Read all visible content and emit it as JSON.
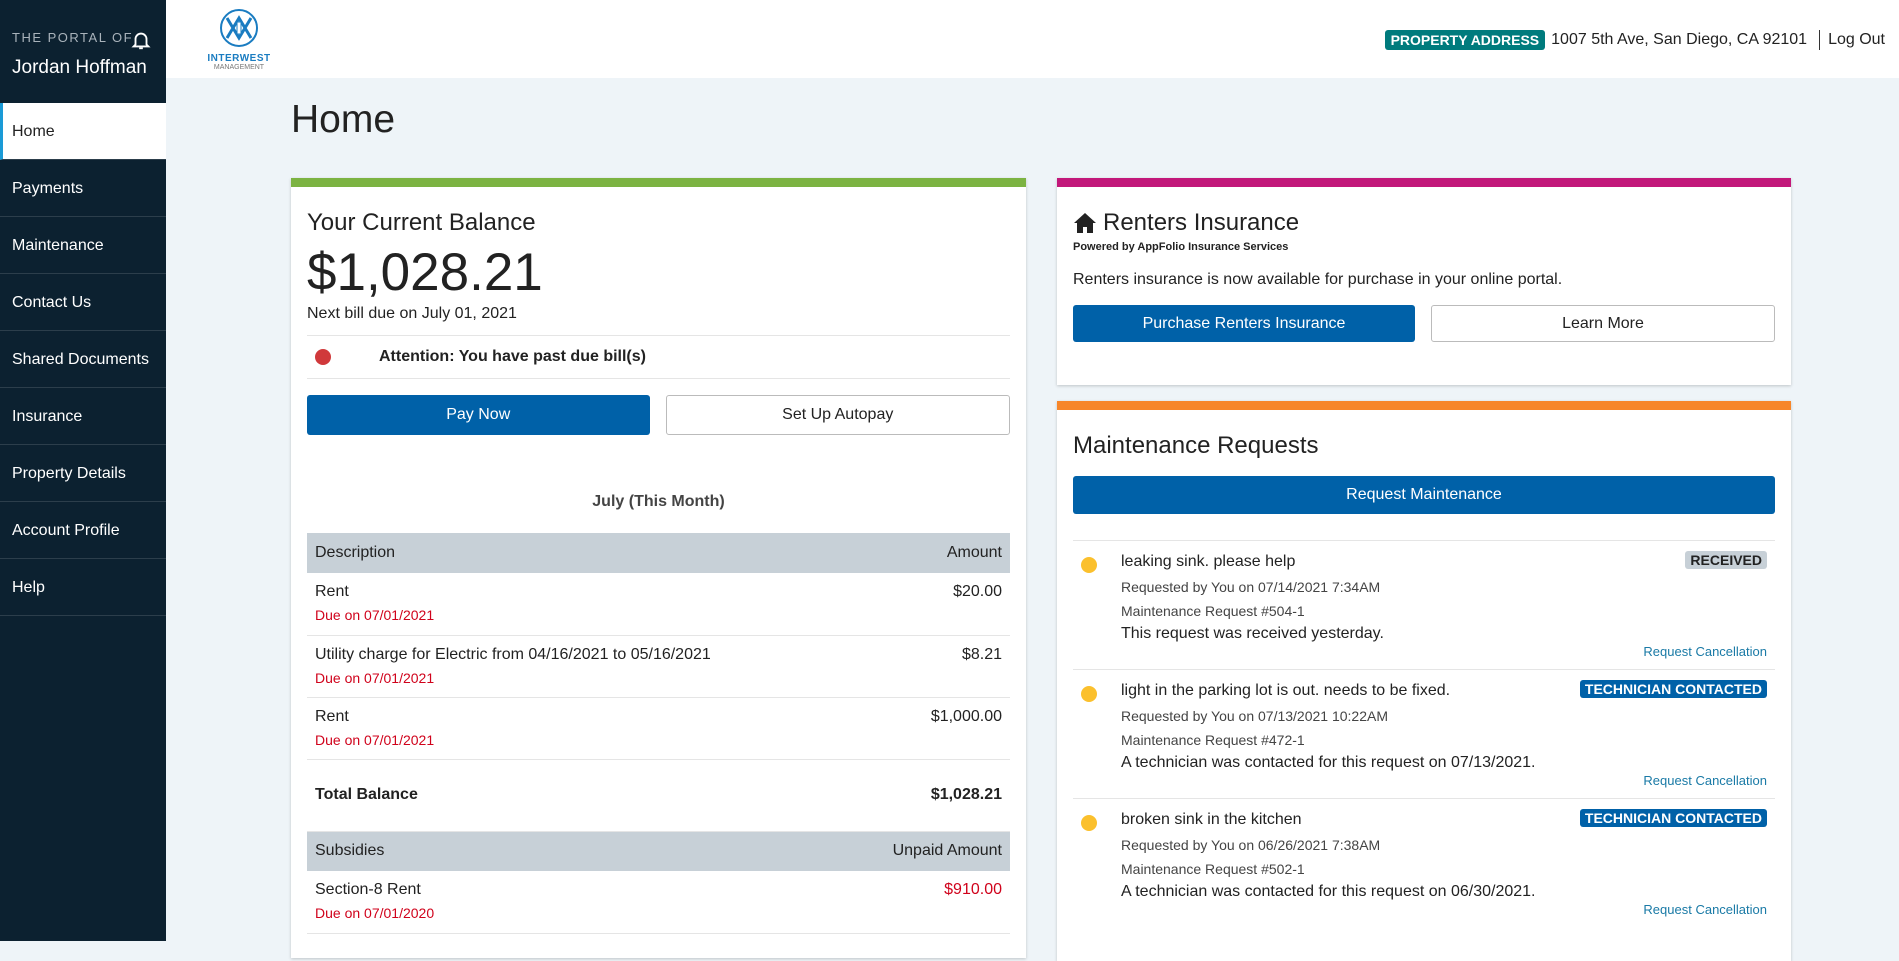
{
  "sidebar": {
    "portal_of": "THE PORTAL OF",
    "user_name": "Jordan Hoffman",
    "items": [
      {
        "label": "Home"
      },
      {
        "label": "Payments"
      },
      {
        "label": "Maintenance"
      },
      {
        "label": "Contact Us"
      },
      {
        "label": "Shared Documents"
      },
      {
        "label": "Insurance"
      },
      {
        "label": "Property Details"
      },
      {
        "label": "Account Profile"
      },
      {
        "label": "Help"
      }
    ]
  },
  "header": {
    "logo_line1": "INTERWEST",
    "logo_line2": "MANAGEMENT",
    "property_badge": "PROPERTY ADDRESS",
    "address": "1007 5th Ave, San Diego, CA 92101",
    "logout": "Log Out"
  },
  "page_title": "Home",
  "balance": {
    "title": "Your Current Balance",
    "amount": "$1,028.21",
    "next_bill": "Next bill due on July 01, 2021",
    "attention": "Attention: You have past due bill(s)",
    "pay_now": "Pay Now",
    "autopay": "Set Up Autopay",
    "month": "July (This Month)",
    "columns": {
      "description": "Description",
      "amount": "Amount"
    },
    "rows": [
      {
        "description": "Rent",
        "due": "Due on 07/01/2021",
        "amount": "$20.00"
      },
      {
        "description": "Utility charge for Electric from 04/16/2021 to 05/16/2021",
        "due": "Due on 07/01/2021",
        "amount": "$8.21"
      },
      {
        "description": "Rent",
        "due": "Due on 07/01/2021",
        "amount": "$1,000.00"
      }
    ],
    "total_label": "Total Balance",
    "total_amount": "$1,028.21",
    "subsidies": {
      "col1": "Subsidies",
      "col2": "Unpaid Amount",
      "rows": [
        {
          "description": "Section-8 Rent",
          "due": "Due on 07/01/2020",
          "amount": "$910.00"
        }
      ]
    }
  },
  "insurance": {
    "title": "Renters Insurance",
    "powered": "Powered by AppFolio Insurance Services",
    "text": "Renters insurance is now available for purchase in your online portal.",
    "purchase": "Purchase Renters Insurance",
    "learn_more": "Learn More"
  },
  "maintenance": {
    "title": "Maintenance Requests",
    "request_button": "Request Maintenance",
    "requests": [
      {
        "title": "leaking sink. please help",
        "requested": "Requested by You on 07/14/2021 7:34AM",
        "number": "Maintenance Request #504-1",
        "description": "This request was received yesterday.",
        "status": "RECEIVED",
        "cancel": "Request Cancellation"
      },
      {
        "title": "light in the parking lot is out. needs to be fixed.",
        "requested": "Requested by You on 07/13/2021 10:22AM",
        "number": "Maintenance Request #472-1",
        "description": "A technician was contacted for this request on 07/13/2021.",
        "status": "TECHNICIAN CONTACTED",
        "cancel": "Request Cancellation"
      },
      {
        "title": "broken sink in the kitchen",
        "requested": "Requested by You on 06/26/2021 7:38AM",
        "number": "Maintenance Request #502-1",
        "description": "A technician was contacted for this request on 06/30/2021.",
        "status": "TECHNICIAN CONTACTED",
        "cancel": "Request Cancellation"
      }
    ]
  },
  "colors": {
    "sidebar": "#0c2130",
    "primary": "#0061a8",
    "balance_accent": "#7cb342",
    "insurance_accent": "#c2187a",
    "maintenance_accent": "#f7862a",
    "badge": "#007b7d",
    "alert": "#d0021b",
    "pending": "#fbc02d"
  }
}
